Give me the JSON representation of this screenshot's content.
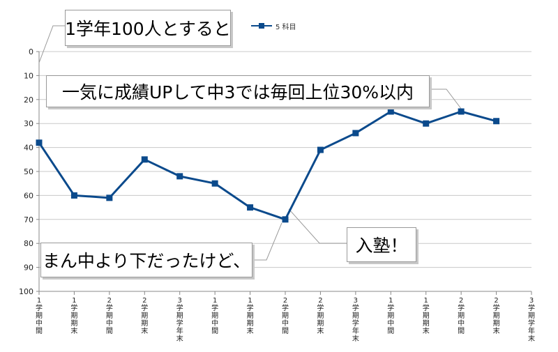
{
  "chart_data": {
    "type": "line",
    "categories": [
      [
        "1",
        "学",
        "期",
        "中",
        "間"
      ],
      [
        "1",
        "学",
        "期",
        "期",
        "末"
      ],
      [
        "2",
        "学",
        "期",
        "中",
        "間"
      ],
      [
        "2",
        "学",
        "期",
        "期",
        "末"
      ],
      [
        "3",
        "学",
        "期",
        "学",
        "年",
        "末"
      ],
      [
        "1",
        "学",
        "期",
        "中",
        "間"
      ],
      [
        "1",
        "学",
        "期",
        "期",
        "末"
      ],
      [
        "2",
        "学",
        "期",
        "中",
        "間"
      ],
      [
        "2",
        "学",
        "期",
        "期",
        "末"
      ],
      [
        "3",
        "学",
        "期",
        "学",
        "年",
        "末"
      ],
      [
        "1",
        "学",
        "期",
        "中",
        "間"
      ],
      [
        "1",
        "学",
        "期",
        "期",
        "末"
      ],
      [
        "2",
        "学",
        "期",
        "中",
        "間"
      ],
      [
        "2",
        "学",
        "期",
        "期",
        "末"
      ],
      [
        "3",
        "学",
        "期",
        "学",
        "年",
        "末"
      ]
    ],
    "series": [
      {
        "name": "5 科目",
        "values": [
          38,
          60,
          61,
          45,
          52,
          55,
          65,
          70,
          41,
          34,
          25,
          30,
          25,
          29,
          null
        ]
      }
    ],
    "ylim": [
      0,
      100
    ],
    "y_reversed": true,
    "y_ticks": [
      0,
      10,
      20,
      30,
      40,
      50,
      60,
      70,
      80,
      90,
      100
    ],
    "grid": true,
    "legend_position": "top",
    "line_color": "#0b4a8c",
    "grid_color": "#c8c8c8"
  },
  "callouts": {
    "top": "1学年100人とすると",
    "main": "一気に成績UPして中3では毎回上位30%以内",
    "juku": "入塾！",
    "mid": "まん中より下だったけど、"
  }
}
